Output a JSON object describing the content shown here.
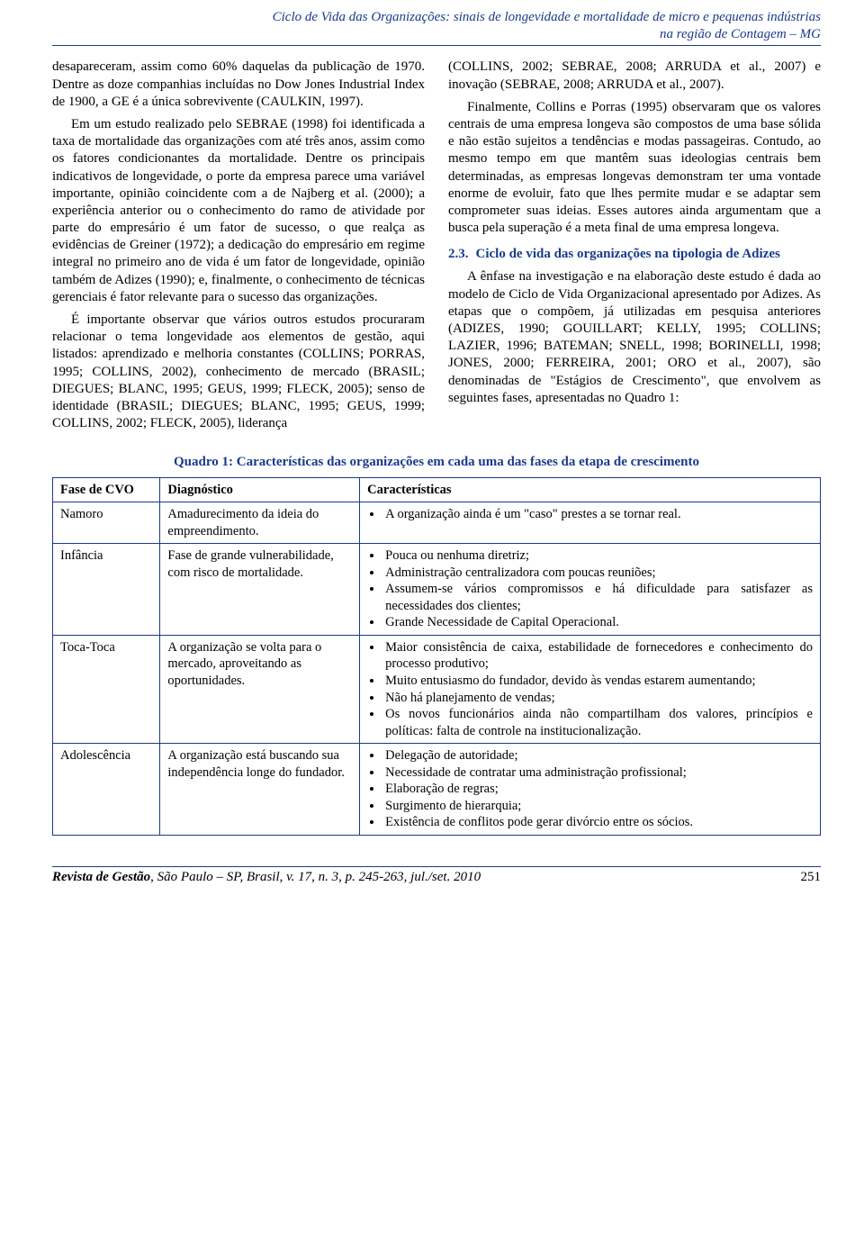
{
  "header": {
    "line1": "Ciclo de Vida das Organizações: sinais de longevidade e mortalidade de micro e pequenas indústrias",
    "line2": "na região de Contagem – MG"
  },
  "left_col": {
    "p1": "desapareceram, assim como 60% daquelas da publicação de 1970. Dentre as doze companhias incluídas no Dow Jones Industrial Index de 1900, a GE é a única sobrevivente (CAULKIN, 1997).",
    "p2": "Em um estudo realizado pelo SEBRAE (1998) foi identificada a taxa de mortalidade das organizações com até três anos, assim como os fatores condicionantes da mortalidade. Dentre os principais indicativos de longevidade, o porte da empresa parece uma variável importante, opinião coincidente com a de Najberg et al. (2000); a experiência anterior ou o conhecimento do ramo de atividade por parte do empresário é um fator de sucesso, o que realça as evidências de Greiner (1972); a dedicação do empresário em regime integral no primeiro ano de vida é um fator de longevidade, opinião também de Adizes (1990); e, finalmente, o conhecimento de técnicas gerenciais é fator relevante para o sucesso das organizações.",
    "p3": "É importante observar que vários outros estudos procuraram relacionar o tema longevidade aos elementos de gestão, aqui listados: aprendizado e melhoria constantes (COLLINS; PORRAS, 1995; COLLINS, 2002), conhecimento de mercado (BRASIL; DIEGUES; BLANC, 1995; GEUS, 1999; FLECK, 2005); senso de identidade (BRASIL; DIEGUES; BLANC, 1995; GEUS, 1999; COLLINS, 2002; FLECK, 2005), liderança"
  },
  "right_col": {
    "p1": "(COLLINS, 2002; SEBRAE, 2008; ARRUDA et al., 2007) e inovação (SEBRAE, 2008; ARRUDA et al., 2007).",
    "p2": "Finalmente, Collins e Porras (1995) observaram que os valores centrais de uma empresa longeva são compostos de uma base sólida e não estão sujeitos a tendências e modas passageiras. Contudo, ao mesmo tempo em que mantêm suas ideologias centrais bem determinadas, as empresas longevas demonstram ter uma vontade enorme de evoluir, fato que lhes permite mudar e se adaptar sem comprometer suas ideias. Esses autores ainda argumentam que a busca pela superação é a meta final de uma empresa longeva.",
    "section_num": "2.3.",
    "section_title": "Ciclo de vida das organizações na tipologia de Adizes",
    "p3": "A ênfase na investigação e na elaboração deste estudo é dada ao modelo de Ciclo de Vida Organizacional apresentado por Adizes. As etapas que o compõem, já utilizadas em pesquisa anteriores (ADIZES, 1990; GOUILLART; KELLY, 1995; COLLINS; LAZIER, 1996; BATEMAN; SNELL, 1998; BORINELLI, 1998; JONES, 2000; FERREIRA, 2001; ORO et al., 2007), são denominadas de \"Estágios de Crescimento\", que envolvem as seguintes fases, apresentadas no Quadro 1:"
  },
  "table": {
    "title": "Quadro 1: Características das organizações em cada uma das fases da etapa de crescimento",
    "headers": [
      "Fase de CVO",
      "Diagnóstico",
      "Características"
    ],
    "rows": [
      {
        "phase": "Namoro",
        "diag": "Amadurecimento da ideia do empreendimento.",
        "chars": [
          "A organização ainda é um \"caso\" prestes a se tornar real."
        ]
      },
      {
        "phase": "Infância",
        "diag": "Fase de grande vulnerabilidade, com risco de mortalidade.",
        "chars": [
          "Pouca ou nenhuma diretriz;",
          "Administração centralizadora com poucas reuniões;",
          "Assumem-se vários compromissos e há dificuldade para satisfazer as necessidades dos clientes;",
          "Grande Necessidade de Capital Operacional."
        ]
      },
      {
        "phase": "Toca-Toca",
        "diag": "A organização se volta para o mercado, aproveitando as oportunidades.",
        "chars": [
          "Maior consistência de caixa, estabilidade de fornecedores e conhecimento do processo produtivo;",
          "Muito entusiasmo do fundador, devido às vendas estarem aumentando;",
          "Não há planejamento de vendas;",
          "Os novos funcionários ainda não compartilham dos valores, princípios e políticas: falta de controle na institucionalização."
        ]
      },
      {
        "phase": "Adolescência",
        "diag": "A organização está buscando sua independência longe do fundador.",
        "chars": [
          "Delegação de autoridade;",
          "Necessidade de contratar uma administração profissional;",
          "Elaboração de regras;",
          "Surgimento de hierarquia;",
          "Existência de conflitos pode gerar divórcio entre os sócios."
        ]
      }
    ]
  },
  "footer": {
    "journal": "Revista de Gestão",
    "rest": ", São Paulo – SP, Brasil, v. 17, n. 3, p. 245-263, jul./set. 2010",
    "page": "251"
  }
}
